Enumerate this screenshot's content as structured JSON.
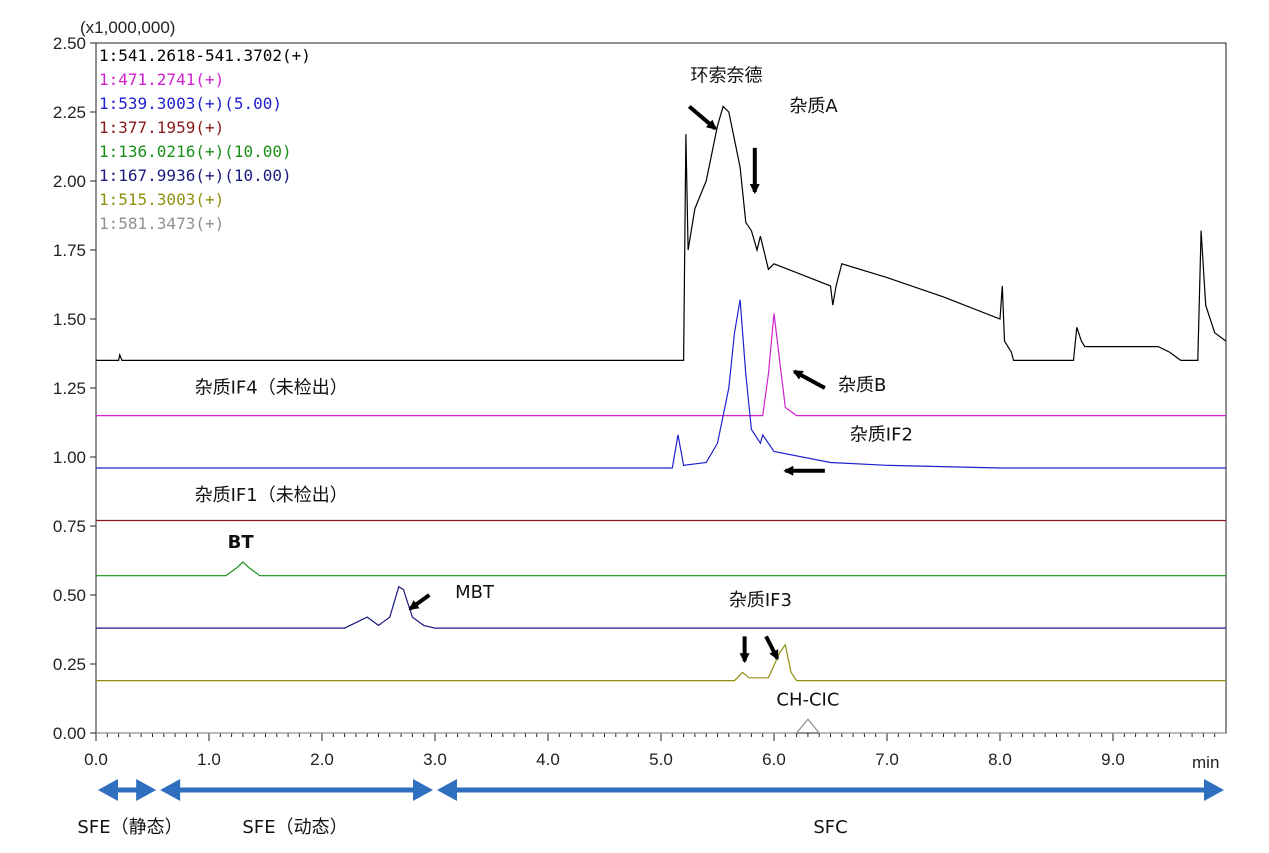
{
  "chart_data": {
    "type": "line",
    "title": "",
    "multiplier_label": "(x1,000,000)",
    "x_unit": "min",
    "xlim": [
      0,
      10
    ],
    "ylim": [
      0,
      2.5
    ],
    "x_ticks": [
      "0.0",
      "1.0",
      "2.0",
      "3.0",
      "4.0",
      "5.0",
      "6.0",
      "7.0",
      "8.0",
      "9.0"
    ],
    "y_ticks": [
      "0.00",
      "0.25",
      "0.50",
      "0.75",
      "1.00",
      "1.25",
      "1.50",
      "1.75",
      "2.00",
      "2.25",
      "2.50"
    ],
    "series": [
      {
        "name": "1:541.2618-541.3702(+)",
        "color": "#000000",
        "baseline": 1.35,
        "points": [
          [
            0,
            1.35
          ],
          [
            0.2,
            1.35
          ],
          [
            0.21,
            1.37
          ],
          [
            0.23,
            1.35
          ],
          [
            5.2,
            1.35
          ],
          [
            5.22,
            2.17
          ],
          [
            5.24,
            1.75
          ],
          [
            5.3,
            1.9
          ],
          [
            5.4,
            2.0
          ],
          [
            5.5,
            2.2
          ],
          [
            5.55,
            2.27
          ],
          [
            5.6,
            2.25
          ],
          [
            5.7,
            2.05
          ],
          [
            5.75,
            1.85
          ],
          [
            5.8,
            1.82
          ],
          [
            5.85,
            1.75
          ],
          [
            5.88,
            1.8
          ],
          [
            5.95,
            1.68
          ],
          [
            6.0,
            1.7
          ],
          [
            6.5,
            1.62
          ],
          [
            6.52,
            1.55
          ],
          [
            6.55,
            1.62
          ],
          [
            6.6,
            1.7
          ],
          [
            7.0,
            1.65
          ],
          [
            7.5,
            1.58
          ],
          [
            8.0,
            1.5
          ],
          [
            8.02,
            1.62
          ],
          [
            8.04,
            1.42
          ],
          [
            8.1,
            1.38
          ],
          [
            8.12,
            1.35
          ],
          [
            8.65,
            1.35
          ],
          [
            8.68,
            1.47
          ],
          [
            8.72,
            1.42
          ],
          [
            8.75,
            1.4
          ],
          [
            9.4,
            1.4
          ],
          [
            9.5,
            1.38
          ],
          [
            9.6,
            1.35
          ],
          [
            9.75,
            1.35
          ],
          [
            9.78,
            1.82
          ],
          [
            9.82,
            1.55
          ],
          [
            9.9,
            1.45
          ],
          [
            10.0,
            1.42
          ]
        ]
      },
      {
        "name": "1:471.2741(+)",
        "color": "#d020d0",
        "baseline": 1.15,
        "points": [
          [
            0,
            1.15
          ],
          [
            5.9,
            1.15
          ],
          [
            5.95,
            1.3
          ],
          [
            6.0,
            1.52
          ],
          [
            6.05,
            1.35
          ],
          [
            6.1,
            1.18
          ],
          [
            6.2,
            1.15
          ],
          [
            10,
            1.15
          ]
        ]
      },
      {
        "name": "1:539.3003(+)(5.00)",
        "color": "#2020d0",
        "baseline": 0.96,
        "points": [
          [
            0,
            0.96
          ],
          [
            5.1,
            0.96
          ],
          [
            5.15,
            1.08
          ],
          [
            5.2,
            0.97
          ],
          [
            5.4,
            0.98
          ],
          [
            5.5,
            1.05
          ],
          [
            5.6,
            1.25
          ],
          [
            5.65,
            1.45
          ],
          [
            5.7,
            1.57
          ],
          [
            5.75,
            1.3
          ],
          [
            5.8,
            1.1
          ],
          [
            5.88,
            1.05
          ],
          [
            5.9,
            1.08
          ],
          [
            6.0,
            1.02
          ],
          [
            6.5,
            0.98
          ],
          [
            7.0,
            0.97
          ],
          [
            8.0,
            0.96
          ],
          [
            10,
            0.96
          ]
        ]
      },
      {
        "name": "1:377.1959(+)",
        "color": "#8b1a1a",
        "baseline": 0.77,
        "points": [
          [
            0,
            0.77
          ],
          [
            10,
            0.77
          ]
        ]
      },
      {
        "name": "1:136.0216(+)(10.00)",
        "color": "#189018",
        "baseline": 0.57,
        "points": [
          [
            0,
            0.57
          ],
          [
            1.15,
            0.57
          ],
          [
            1.25,
            0.6
          ],
          [
            1.3,
            0.62
          ],
          [
            1.35,
            0.6
          ],
          [
            1.45,
            0.57
          ],
          [
            10,
            0.57
          ]
        ]
      },
      {
        "name": "1:167.9936(+)(10.00)",
        "color": "#1a1a80",
        "baseline": 0.38,
        "points": [
          [
            0,
            0.38
          ],
          [
            2.2,
            0.38
          ],
          [
            2.35,
            0.41
          ],
          [
            2.4,
            0.42
          ],
          [
            2.5,
            0.39
          ],
          [
            2.6,
            0.42
          ],
          [
            2.68,
            0.53
          ],
          [
            2.72,
            0.52
          ],
          [
            2.8,
            0.42
          ],
          [
            2.9,
            0.39
          ],
          [
            3.0,
            0.38
          ],
          [
            10,
            0.38
          ]
        ]
      },
      {
        "name": "1:515.3003(+)",
        "color": "#909010",
        "baseline": 0.19,
        "points": [
          [
            0,
            0.19
          ],
          [
            5.65,
            0.19
          ],
          [
            5.72,
            0.22
          ],
          [
            5.78,
            0.2
          ],
          [
            5.95,
            0.2
          ],
          [
            6.05,
            0.29
          ],
          [
            6.1,
            0.32
          ],
          [
            6.15,
            0.22
          ],
          [
            6.2,
            0.19
          ],
          [
            10,
            0.19
          ]
        ]
      },
      {
        "name": "1:581.3473(+)",
        "color": "#909090",
        "baseline": 0.0,
        "points": [
          [
            0,
            0.0
          ],
          [
            6.2,
            0.0
          ],
          [
            6.3,
            0.05
          ],
          [
            6.4,
            0.0
          ],
          [
            10,
            0.0
          ]
        ]
      }
    ],
    "annotations": [
      {
        "text": "环索奈德",
        "x": 5.58,
        "y": 2.36
      },
      {
        "text": "杂质A",
        "x": 6.35,
        "y": 2.25
      },
      {
        "text": "杂质B",
        "x": 6.78,
        "y": 1.24
      },
      {
        "text": "杂质IF4（未检出）",
        "x": 1.55,
        "y": 1.23
      },
      {
        "text": "杂质IF2",
        "x": 6.95,
        "y": 1.06
      },
      {
        "text": "杂质IF1（未检出）",
        "x": 1.55,
        "y": 0.84
      },
      {
        "text": "BT",
        "x": 1.28,
        "y": 0.67,
        "bold": true
      },
      {
        "text": "MBT",
        "x": 3.35,
        "y": 0.49
      },
      {
        "text": "杂质IF3",
        "x": 5.88,
        "y": 0.46
      },
      {
        "text": "CH-CIC",
        "x": 6.3,
        "y": 0.1
      }
    ],
    "phase_labels": [
      {
        "text": "SFE（静态）",
        "x_start": 0.0,
        "x_end": 0.55
      },
      {
        "text": "SFE（动态）",
        "x_start": 0.55,
        "x_end": 3.0
      },
      {
        "text": "SFC",
        "x_start": 3.0,
        "x_end": 10.0
      }
    ],
    "phase_color": "#2f6fbf"
  }
}
